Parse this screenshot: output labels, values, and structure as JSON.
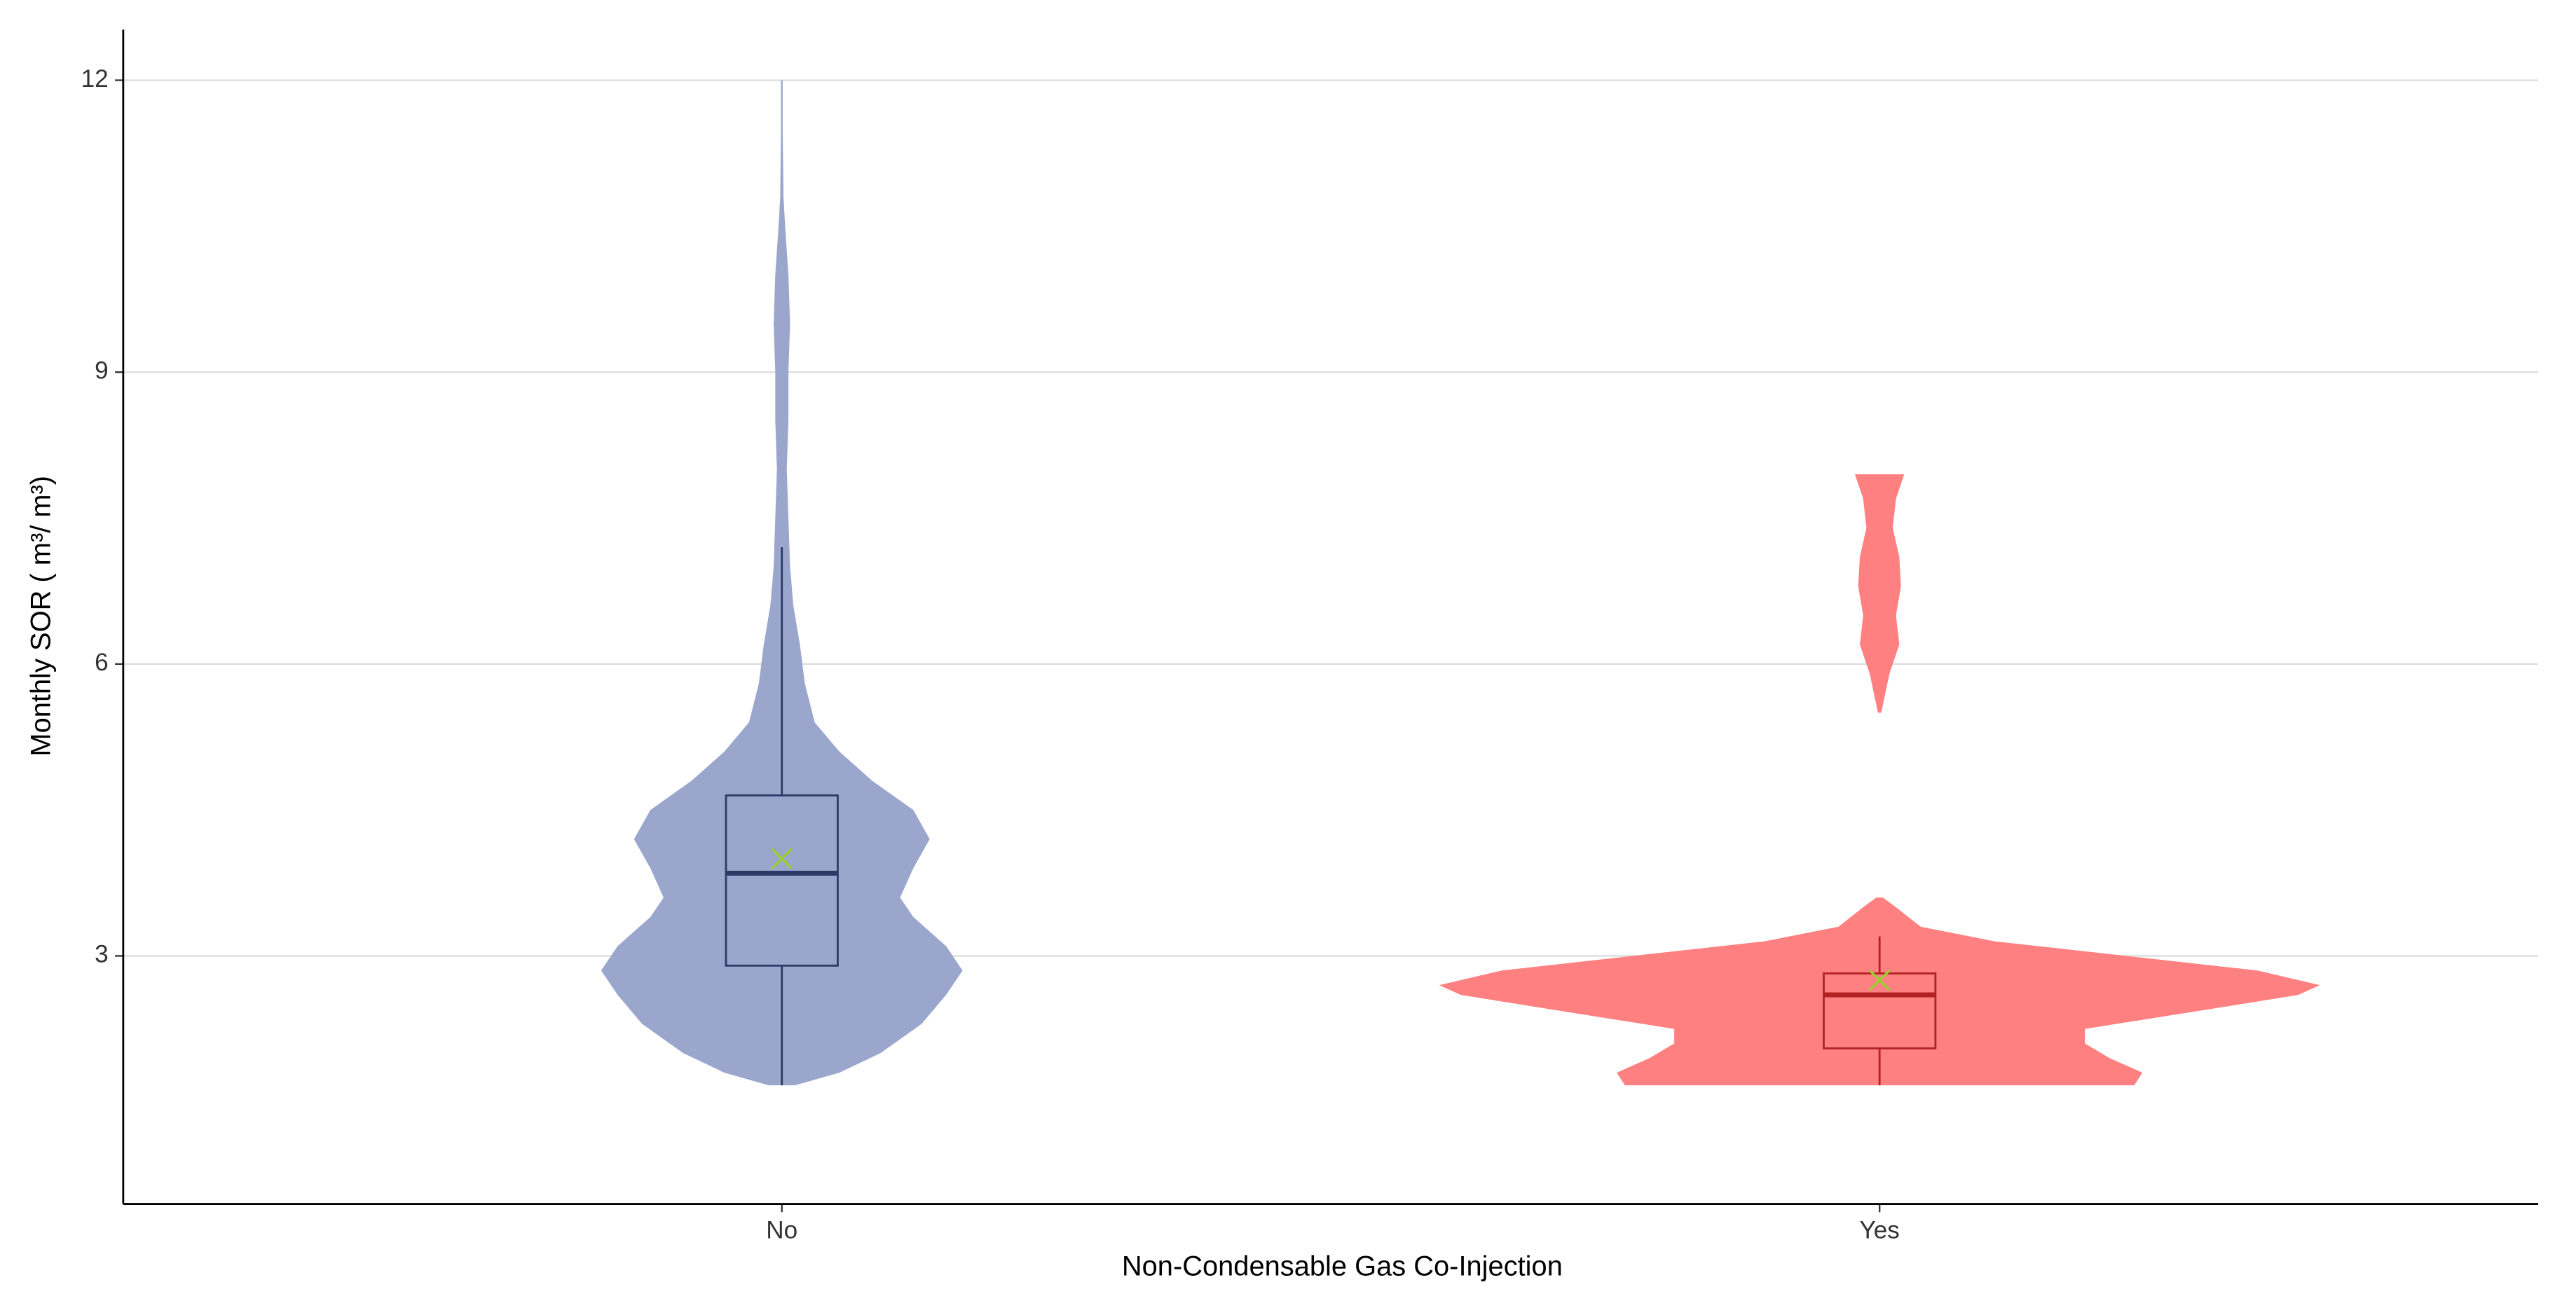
{
  "chart_data": {
    "type": "violin",
    "x_label": "Non-Condensable Gas Co-Injection",
    "y_label": "Monthly SOR ( m³/ m³)",
    "categories": [
      "No",
      "Yes"
    ],
    "ylim": [
      0.45,
      12.52
    ],
    "yticks": [
      3,
      6,
      9,
      12
    ],
    "grid": true,
    "mean_color": "#9acd32",
    "groups": [
      {
        "color": "#9aa6cc",
        "box_color": "#2b3a67",
        "y": [
          1.67,
          1.8,
          2.0,
          2.3,
          2.6,
          2.85,
          3.1,
          3.4,
          3.6,
          3.9,
          4.2,
          4.5,
          4.8,
          5.1,
          5.4,
          5.8,
          6.2,
          6.6,
          7.0,
          7.5,
          8.0,
          8.5,
          9.0,
          9.5,
          10.0,
          10.5,
          10.8,
          11.5,
          12.0
        ],
        "density": [
          0.08,
          0.35,
          0.6,
          0.85,
          1.0,
          1.1,
          1.0,
          0.8,
          0.72,
          0.8,
          0.9,
          0.8,
          0.55,
          0.35,
          0.2,
          0.14,
          0.11,
          0.07,
          0.05,
          0.04,
          0.03,
          0.04,
          0.04,
          0.05,
          0.04,
          0.02,
          0.01,
          0.005,
          0.005
        ],
        "whisker_low": 1.67,
        "q1": 2.9,
        "median": 3.85,
        "q3": 4.65,
        "whisker_high": 7.2,
        "mean": 4.0
      },
      {
        "color": "#ff8080",
        "box_color": "#b22222",
        "y": [
          1.67,
          1.8,
          1.95,
          2.1,
          2.25,
          2.45,
          2.6,
          2.7,
          2.85,
          3.0,
          3.15,
          3.3,
          3.5,
          3.6,
          4.5,
          5.5,
          5.9,
          6.2,
          6.5,
          6.8,
          7.1,
          7.4,
          7.7,
          7.95
        ],
        "density": [
          1.55,
          1.6,
          1.4,
          1.25,
          1.25,
          2.0,
          2.55,
          2.68,
          2.3,
          1.5,
          0.7,
          0.25,
          0.1,
          0.02,
          null,
          0.01,
          0.06,
          0.12,
          0.1,
          0.13,
          0.12,
          0.08,
          0.1,
          0.15
        ],
        "whisker_low": 1.67,
        "q1": 2.05,
        "median": 2.6,
        "q3": 2.82,
        "whisker_high": 3.2,
        "mean": 2.75
      }
    ]
  }
}
